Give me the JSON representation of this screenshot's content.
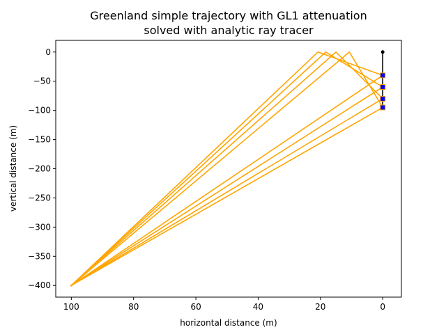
{
  "chart_data": {
    "type": "line",
    "title": [
      "Greenland simple trajectory with GL1 attenuation",
      "solved with analytic ray tracer"
    ],
    "xlabel": "horizontal distance (m)",
    "ylabel": "vertical distance (m)",
    "xlim": [
      105,
      -6
    ],
    "ylim": [
      -420,
      20
    ],
    "x_inverted": true,
    "xticks": [
      100,
      80,
      60,
      40,
      20,
      0
    ],
    "yticks": [
      0,
      -50,
      -100,
      -150,
      -200,
      -250,
      -300,
      -350,
      -400
    ],
    "xtick_labels": [
      "100",
      "80",
      "60",
      "40",
      "20",
      "0"
    ],
    "ytick_labels": [
      "0",
      "−50",
      "−100",
      "−150",
      "−200",
      "−250",
      "−300",
      "−350",
      "−400"
    ],
    "grid": false,
    "legend": "none",
    "emitter": {
      "x": 100,
      "y": -400
    },
    "string": {
      "x": 0,
      "y_top": 0,
      "y_bottom": -95
    },
    "antennas": [
      {
        "x": 0,
        "y": -40
      },
      {
        "x": 0,
        "y": -60
      },
      {
        "x": 0,
        "y": -80
      },
      {
        "x": 0,
        "y": -95
      }
    ],
    "series": [
      {
        "kind": "reflected",
        "points": [
          [
            100,
            -400
          ],
          [
            20.8,
            0
          ],
          [
            0,
            -40
          ]
        ]
      },
      {
        "kind": "reflected",
        "points": [
          [
            100,
            -400
          ],
          [
            18.3,
            0
          ],
          [
            0,
            -60
          ]
        ]
      },
      {
        "kind": "reflected",
        "points": [
          [
            100,
            -400
          ],
          [
            15.0,
            0
          ],
          [
            0,
            -80
          ]
        ]
      },
      {
        "kind": "reflected",
        "points": [
          [
            100,
            -400
          ],
          [
            10.7,
            0
          ],
          [
            0,
            -95
          ]
        ]
      },
      {
        "kind": "direct",
        "points": [
          [
            100,
            -400
          ],
          [
            0,
            -40
          ]
        ]
      },
      {
        "kind": "direct",
        "points": [
          [
            100,
            -400
          ],
          [
            0,
            -60
          ]
        ]
      },
      {
        "kind": "direct",
        "points": [
          [
            100,
            -400
          ],
          [
            0,
            -80
          ]
        ]
      },
      {
        "kind": "direct",
        "points": [
          [
            100,
            -400
          ],
          [
            0,
            -95
          ]
        ]
      }
    ],
    "colors": {
      "ray": "#ffa500",
      "antenna_fill": "#0000ff",
      "string": "#000000",
      "axes": "#000000"
    }
  }
}
